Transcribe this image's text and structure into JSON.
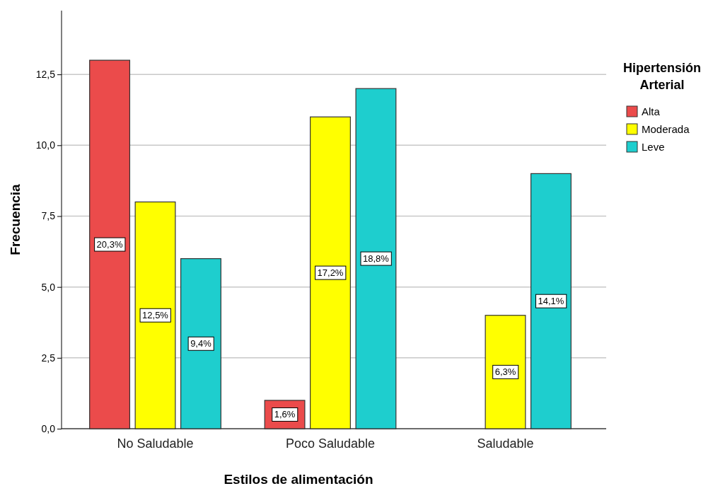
{
  "chart_data": {
    "type": "bar",
    "xlabel": "Estilos de alimentación",
    "ylabel": "Frecuencia",
    "legend_title": "Hipertensión Arterial",
    "categories": [
      "No Saludable",
      "Poco Saludable",
      "Saludable"
    ],
    "series": [
      {
        "name": "Alta",
        "color": "#eb4b4b",
        "values": [
          13,
          1,
          null
        ]
      },
      {
        "name": "Moderada",
        "color": "#ffff00",
        "values": [
          8,
          11,
          4
        ]
      },
      {
        "name": "Leve",
        "color": "#1ecece",
        "values": [
          6,
          12,
          9
        ]
      }
    ],
    "annotations": [
      "20,3%",
      "12,5%",
      "9,4%",
      "1,6%",
      "17,2%",
      "18,8%",
      "6,3%",
      "14,1%"
    ],
    "ylim": [
      0,
      14.75
    ],
    "yticks": [
      {
        "value": 0,
        "label": "0,0"
      },
      {
        "value": 2.5,
        "label": "2,5"
      },
      {
        "value": 5,
        "label": "5,0"
      },
      {
        "value": 7.5,
        "label": "7,5"
      },
      {
        "value": 10,
        "label": "10,0"
      },
      {
        "value": 12.5,
        "label": "12,5"
      }
    ],
    "grid": "y",
    "legend": "top right"
  }
}
